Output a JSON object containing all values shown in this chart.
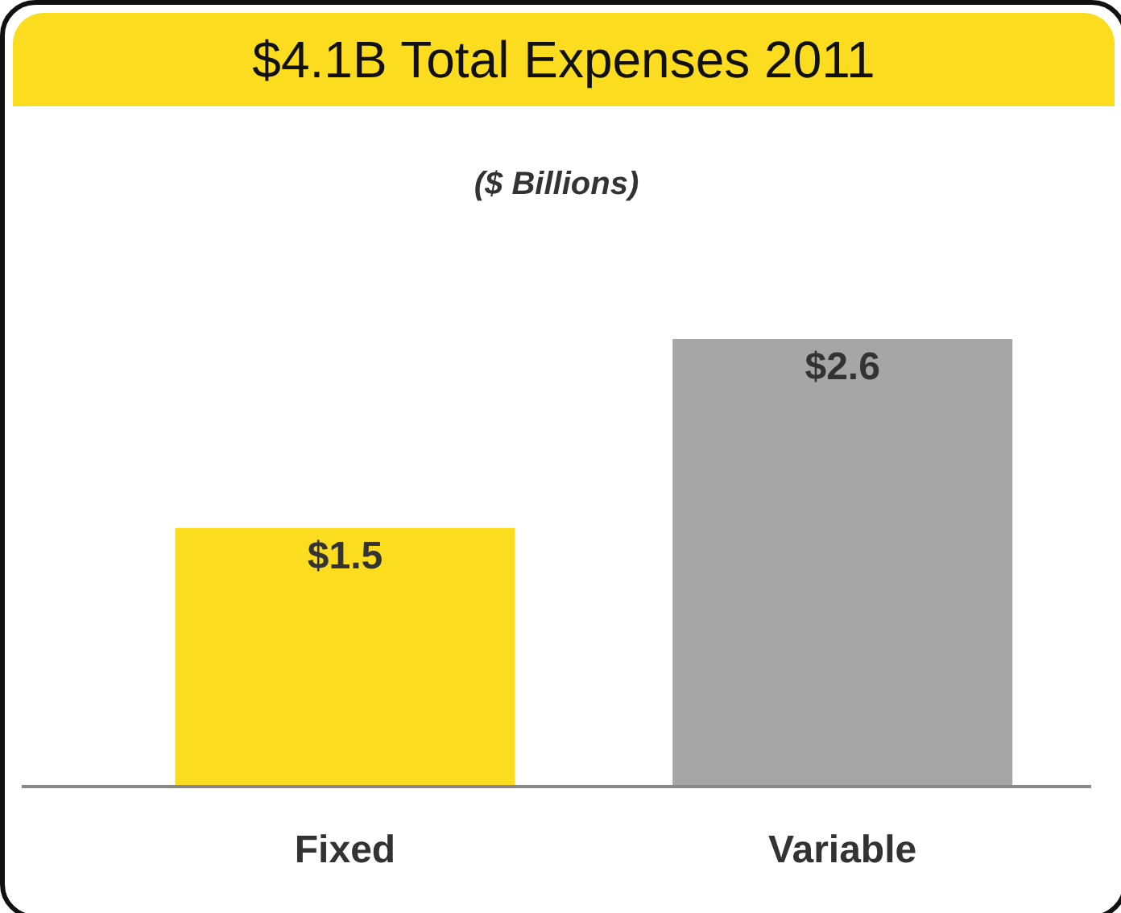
{
  "chart_data": {
    "type": "bar",
    "title": "$4.1B Total Expenses 2011",
    "subtitle": "($ Billions)",
    "categories": [
      "Fixed",
      "Variable"
    ],
    "values": [
      1.5,
      2.6
    ],
    "colors": [
      "#fcdc1e",
      "#a6a6a6"
    ],
    "value_labels": [
      "$1.5",
      "$2.6"
    ],
    "grid": false
  }
}
